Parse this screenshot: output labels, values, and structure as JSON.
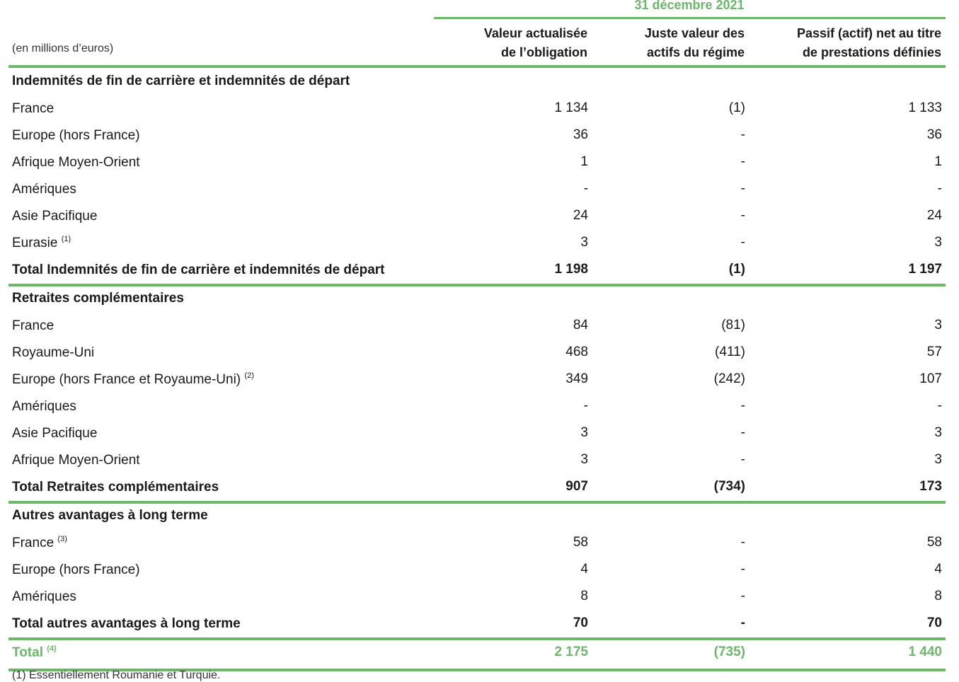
{
  "header": {
    "period": "31 décembre 2021",
    "unit": "(en millions d’euros)",
    "col1": [
      "Valeur actualisée",
      "de l’obligation"
    ],
    "col2": [
      "Juste valeur des",
      "actifs du régime"
    ],
    "col3": [
      "Passif (actif) net au titre",
      "de prestations définies"
    ]
  },
  "sections": [
    {
      "title": "Indemnités de fin de carrière et indemnités de départ",
      "rows": [
        {
          "label": "France",
          "note": "",
          "c1": "1 134",
          "c2": "(1)",
          "c3": "1 133"
        },
        {
          "label": "Europe (hors France)",
          "note": "",
          "c1": "36",
          "c2": "-",
          "c3": "36"
        },
        {
          "label": "Afrique Moyen-Orient",
          "note": "",
          "c1": "1",
          "c2": "-",
          "c3": "1"
        },
        {
          "label": "Amériques",
          "note": "",
          "c1": "-",
          "c2": "-",
          "c3": "-"
        },
        {
          "label": "Asie Pacifique",
          "note": "",
          "c1": "24",
          "c2": "-",
          "c3": "24"
        },
        {
          "label": "Eurasie",
          "note": "(1)",
          "c1": "3",
          "c2": "-",
          "c3": "3"
        }
      ],
      "total": {
        "label": "Total Indemnités de fin de carrière et indemnités de départ",
        "c1": "1 198",
        "c2": "(1)",
        "c3": "1 197"
      }
    },
    {
      "title": "Retraites complémentaires",
      "rows": [
        {
          "label": "France",
          "note": "",
          "c1": "84",
          "c2": "(81)",
          "c3": "3"
        },
        {
          "label": "Royaume-Uni",
          "note": "",
          "c1": "468",
          "c2": "(411)",
          "c3": "57"
        },
        {
          "label": "Europe (hors France et Royaume-Uni)",
          "note": "(2)",
          "c1": "349",
          "c2": "(242)",
          "c3": "107"
        },
        {
          "label": "Amériques",
          "note": "",
          "c1": "-",
          "c2": "-",
          "c3": "-"
        },
        {
          "label": "Asie Pacifique",
          "note": "",
          "c1": "3",
          "c2": "-",
          "c3": "3"
        },
        {
          "label": "Afrique Moyen-Orient",
          "note": "",
          "c1": "3",
          "c2": "-",
          "c3": "3"
        }
      ],
      "total": {
        "label": "Total Retraites complémentaires",
        "c1": "907",
        "c2": "(734)",
        "c3": "173"
      }
    },
    {
      "title": "Autres avantages à long terme",
      "rows": [
        {
          "label": "France",
          "note": "(3)",
          "c1": "58",
          "c2": "-",
          "c3": "58"
        },
        {
          "label": "Europe (hors France)",
          "note": "",
          "c1": "4",
          "c2": "-",
          "c3": "4"
        },
        {
          "label": "Amériques",
          "note": "",
          "c1": "8",
          "c2": "-",
          "c3": "8"
        }
      ],
      "total": {
        "label": "Total autres avantages à long terme",
        "c1": "70",
        "c2": "-",
        "c3": "70"
      }
    }
  ],
  "grand_total": {
    "label": "Total",
    "note": "(4)",
    "c1": "2 175",
    "c2": "(735)",
    "c3": "1 440"
  },
  "footnote": "(1) Essentiellement Roumanie et Turquie."
}
